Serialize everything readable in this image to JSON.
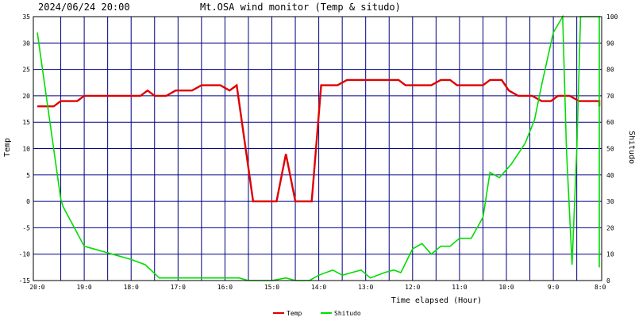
{
  "header": {
    "timestamp": "2024/06/24 20:00",
    "title": "Mt.OSA wind monitor (Temp & situdo)"
  },
  "chart_data": {
    "type": "line",
    "xlabel": "Time elapsed (Hour)",
    "ylabel_left": "Temp",
    "ylabel_right": "Shitudo",
    "x_tick_labels": [
      "20:0",
      "19:0",
      "18:0",
      "17:0",
      "16:0",
      "15:0",
      "14:0",
      "13:0",
      "12:0",
      "11:0",
      "10:0",
      "9:0",
      "8:0"
    ],
    "x_range_hours": [
      0,
      12
    ],
    "x_direction": "right-to-left",
    "grid": true,
    "ylim_left": [
      -15,
      35
    ],
    "yticks_left": [
      "35",
      "30",
      "25",
      "20",
      "15",
      "10",
      "5",
      "0",
      "-5",
      "-10",
      "-15"
    ],
    "ylim_right": [
      0,
      100
    ],
    "yticks_right": [
      "100",
      "90",
      "80",
      "70",
      "60",
      "50",
      "40",
      "30",
      "20",
      "10",
      "0"
    ],
    "legend_placement": "bottom-center",
    "series": [
      {
        "name": "Temp",
        "color": "#e00000",
        "axis": "left",
        "points": [
          [
            0,
            18
          ],
          [
            0.35,
            18
          ],
          [
            0.5,
            19
          ],
          [
            0.85,
            19
          ],
          [
            1.0,
            20
          ],
          [
            2.0,
            20
          ],
          [
            2.2,
            20
          ],
          [
            2.35,
            21
          ],
          [
            2.5,
            20
          ],
          [
            2.75,
            20
          ],
          [
            2.95,
            21
          ],
          [
            3.3,
            21
          ],
          [
            3.5,
            22
          ],
          [
            3.9,
            22
          ],
          [
            4.1,
            21
          ],
          [
            4.25,
            22
          ],
          [
            4.6,
            0
          ],
          [
            5.1,
            0
          ],
          [
            5.3,
            9
          ],
          [
            5.5,
            0
          ],
          [
            5.85,
            0
          ],
          [
            6.05,
            22
          ],
          [
            6.4,
            22
          ],
          [
            6.6,
            23
          ],
          [
            7.0,
            23
          ],
          [
            7.7,
            23
          ],
          [
            7.85,
            22
          ],
          [
            8.4,
            22
          ],
          [
            8.6,
            23
          ],
          [
            8.8,
            23
          ],
          [
            8.95,
            22
          ],
          [
            9.5,
            22
          ],
          [
            9.65,
            23
          ],
          [
            9.9,
            23
          ],
          [
            10.05,
            21
          ],
          [
            10.25,
            20
          ],
          [
            10.55,
            20
          ],
          [
            10.75,
            19
          ],
          [
            10.95,
            19
          ],
          [
            11.1,
            20
          ],
          [
            11.35,
            20
          ],
          [
            11.55,
            19
          ],
          [
            12.35,
            19
          ],
          [
            12.5,
            18
          ],
          [
            13.4,
            18
          ]
        ]
      },
      {
        "name": "Shitudo",
        "color": "#00dd00",
        "axis": "right",
        "points": [
          [
            0,
            94
          ],
          [
            0.5,
            31
          ],
          [
            0.55,
            28
          ],
          [
            1.0,
            13
          ],
          [
            1.6,
            10
          ],
          [
            2.0,
            8
          ],
          [
            2.3,
            6
          ],
          [
            2.6,
            1
          ],
          [
            3.5,
            1
          ],
          [
            4.3,
            1
          ],
          [
            4.5,
            0
          ],
          [
            5.0,
            0
          ],
          [
            5.3,
            1
          ],
          [
            5.5,
            0
          ],
          [
            5.8,
            0
          ],
          [
            6.0,
            2
          ],
          [
            6.3,
            4
          ],
          [
            6.5,
            2
          ],
          [
            6.9,
            4
          ],
          [
            7.1,
            1
          ],
          [
            7.4,
            3
          ],
          [
            7.6,
            4
          ],
          [
            7.75,
            3
          ],
          [
            8.0,
            12
          ],
          [
            8.2,
            14
          ],
          [
            8.4,
            10
          ],
          [
            8.6,
            13
          ],
          [
            8.8,
            13
          ],
          [
            9.0,
            16
          ],
          [
            9.25,
            16
          ],
          [
            9.5,
            24
          ],
          [
            9.65,
            41
          ],
          [
            9.85,
            39
          ],
          [
            10.1,
            44
          ],
          [
            10.4,
            52
          ],
          [
            10.6,
            61
          ],
          [
            10.75,
            74
          ],
          [
            11.0,
            94
          ],
          [
            11.2,
            100
          ],
          [
            11.28,
            50
          ],
          [
            11.4,
            6
          ],
          [
            11.5,
            50
          ],
          [
            11.58,
            100
          ],
          [
            11.9,
            100
          ],
          [
            12.2,
            100
          ],
          [
            12.5,
            100
          ],
          [
            12.8,
            99
          ],
          [
            13.0,
            100
          ],
          [
            13.1,
            100
          ],
          [
            13.2,
            100
          ],
          [
            13.38,
            60
          ],
          [
            13.48,
            5
          ],
          [
            13.6,
            60
          ],
          [
            13.72,
            100
          ],
          [
            14.0,
            100
          ],
          [
            14.8,
            100
          ],
          [
            15.0,
            100
          ]
        ]
      }
    ]
  }
}
